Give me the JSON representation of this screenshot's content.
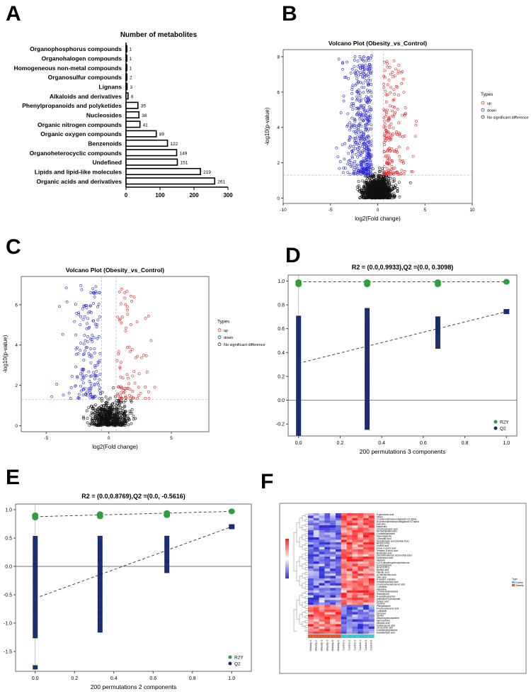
{
  "panels": {
    "A": {
      "letter": "A"
    },
    "B": {
      "letter": "B"
    },
    "C": {
      "letter": "C"
    },
    "D": {
      "letter": "D"
    },
    "E": {
      "letter": "E"
    },
    "F": {
      "letter": "F"
    }
  },
  "chart_data": [
    {
      "id": "A",
      "type": "bar",
      "orientation": "horizontal",
      "title": "Number of  metabolites",
      "categories": [
        "Organophosphorus compounds",
        "Organohalogen compounds",
        "Homogeneous non-metal compounds",
        "Organosulfur compounds",
        "Lignans",
        "Alkaloids and derivatives",
        "Phenylpropanoids and polyketides",
        "Nucleosides",
        "Organic nitrogen compounds",
        "Organic oxygen compounds",
        "Benzenoids",
        "Organoheterocyclic compounds",
        "Undefined",
        "Lipids and lipid-like molecules",
        "Organic acids and derivatives"
      ],
      "values": [
        1,
        1,
        1,
        2,
        3,
        6,
        35,
        38,
        41,
        89,
        122,
        149,
        151,
        219,
        261
      ],
      "xlim": [
        0,
        300
      ],
      "xticks": [
        0,
        100,
        200,
        300
      ]
    },
    {
      "id": "B",
      "type": "scatter",
      "title": "Volcano Plot (Obesity_vs_Control)",
      "xlabel": "log2(Fold change)",
      "ylabel": "-log10(p-value)",
      "xlim": [
        -10,
        10
      ],
      "ylim": [
        -0.3,
        8.4
      ],
      "xticks": [
        -10,
        -5,
        0,
        5,
        10
      ],
      "yticks": [
        0,
        2,
        4,
        6,
        8
      ],
      "thresholds": {
        "x": [
          -0.58,
          0.58
        ],
        "y": 1.3
      },
      "legend": {
        "title": "Types",
        "entries": [
          "up",
          "down",
          "No significant difference"
        ],
        "colors": [
          "#e03030",
          "#3030d0",
          "#222222"
        ]
      }
    },
    {
      "id": "C",
      "type": "scatter",
      "title": "Volcano Plot (Obesity_vs_Control)",
      "xlabel": "log2(Fold change)",
      "ylabel": "-log10(p-value)",
      "xlim": [
        -7,
        8
      ],
      "ylim": [
        -0.3,
        7.4
      ],
      "xticks": [
        -5,
        0,
        5
      ],
      "yticks": [
        0,
        2,
        4,
        6
      ],
      "thresholds": {
        "x": [
          -0.58,
          0.58
        ],
        "y": 1.3
      },
      "legend": {
        "title": "Types",
        "entries": [
          "up",
          "down",
          "No significant difference"
        ],
        "colors": [
          "#e03030",
          "#3030d0",
          "#222222"
        ]
      }
    },
    {
      "id": "D",
      "type": "scatter",
      "title": "R2 = (0.0,0.9933),Q2 =(0.0, 0.3098)",
      "xlabel": "200 permutations 3 components",
      "xlim": [
        -0.05,
        1.05
      ],
      "ylim": [
        -0.3,
        1.05
      ],
      "xticks": [
        0.0,
        0.2,
        0.4,
        0.6,
        0.8,
        1.0
      ],
      "yticks": [
        -0.2,
        0.0,
        0.2,
        0.4,
        0.6,
        0.8,
        1.0
      ],
      "series": [
        {
          "name": "R2Y",
          "color": "#2e9e3e",
          "x": [
            0,
            0.33,
            0.67,
            1.0
          ],
          "y": [
            0.99,
            0.99,
            0.99,
            0.9933
          ]
        },
        {
          "name": "Q2",
          "color": "#1a2e6e",
          "x": [
            0,
            0.33,
            0.67,
            1.0
          ],
          "y": [
            0.31,
            0.45,
            0.6,
            0.7435
          ]
        }
      ],
      "q2_ranges": [
        [
          -0.29,
          0.71
        ],
        [
          -0.24,
          0.77
        ],
        [
          0.44,
          0.71
        ]
      ],
      "regression": {
        "R2Y": [
          0.0,
          0.9933
        ],
        "Q2": [
          0.0,
          0.3098
        ]
      }
    },
    {
      "id": "E",
      "type": "scatter",
      "title": "R2 = (0.0,0.8769),Q2 =(0.0, -0.5616)",
      "xlabel": "200 permutations 2 components",
      "xlim": [
        -0.1,
        1.1
      ],
      "ylim": [
        -1.85,
        1.1
      ],
      "xticks": [
        0.0,
        0.2,
        0.4,
        0.6,
        0.8,
        1.0
      ],
      "yticks": [
        -1.5,
        -1.0,
        -0.5,
        0.0,
        0.5,
        1.0
      ],
      "series": [
        {
          "name": "R2Y",
          "color": "#2e9e3e",
          "x": [
            0,
            0.33,
            0.67,
            1.0
          ],
          "y": [
            0.9,
            0.92,
            0.94,
            0.97
          ]
        },
        {
          "name": "Q2",
          "color": "#1a2e6e",
          "x": [
            0,
            0.33,
            0.67,
            1.0
          ],
          "y": [
            -0.56,
            -0.18,
            0.28,
            0.7
          ]
        }
      ],
      "q2_ranges": [
        [
          -1.25,
          0.55
        ],
        [
          -1.15,
          0.55
        ],
        [
          -0.1,
          0.55
        ]
      ],
      "q2_outlier": -1.78,
      "regression": {
        "R2Y": [
          0.0,
          0.8769
        ],
        "Q2": [
          0.0,
          -0.5616
        ]
      }
    },
    {
      "id": "F",
      "type": "heatmap",
      "rows": 50,
      "columns": [
        "Obesity 1",
        "Obesity 2",
        "Obesity 3",
        "Obesity 4",
        "Obesity 5",
        "Obesity 6",
        "Control 1",
        "Control 2",
        "Control 3",
        "Control 4",
        "Control 5",
        "Control 6"
      ],
      "groups": [
        "Obesity",
        "Control"
      ],
      "group_colors": {
        "Obesity": "#e85a2a",
        "Control": "#3ec8d8"
      },
      "color_scale": {
        "low": "#3030d8",
        "mid": "#ffffff",
        "high": "#e02020"
      },
      "row_labels": [
        "D-glucuronic acid",
        "TMAO",
        "17-phenoxytrinorprostaglandin E2 alpha",
        "16-phenoxytetranorprostaglandin E2 alpha",
        "Arecoline",
        "Butanediol",
        "3-hydroxybutyric acid",
        "N6-methyladenosine",
        "1-octadecanamine",
        "Stearoylglycine",
        "L-threonic acid",
        "Acetaldehyde acid (hydrate free)",
        "MG(18:1/0:0)",
        "Linoleic acid",
        "Indole-3-acetic acid",
        "Tetradec-5-enoic acid",
        "Myristoleic acid",
        "Docosahexaenoic acid methyl ester",
        "Dodecanoic acid",
        "Allantoin",
        "1-(2,5-dihydroxyphenyl)ethanone",
        "N-acetylglycine",
        "MG(0:0/18:1)",
        "Myristic acid",
        "Palmitic acid",
        "10-Nitrolinoleic acid",
        "Oleic acid",
        "N-acetyl-L-histidine",
        "Tetradecanedioic acid",
        "2-hydroxyhexadecanoic acid",
        "L-carnitine",
        "Histamine",
        "17-beta-ethylestradiol",
        "Testosterone",
        "N-acetyltryptophan",
        "Adenosine 5-phosphate",
        "Tartaric acid",
        "Tyrosine",
        "Phenylalanine",
        "4-hydroxybenzoic acid",
        "L-citrulline",
        "Pyridoxal",
        "Taurine",
        "Dihydroxybenzylamine",
        "Hypoxanthine",
        "Nicotinic acid",
        "Octadecanoic acid",
        "Cis-aconitic acid",
        "5-methoxytryptamine",
        "Acetaldehyde acid"
      ],
      "legend_labels": [
        "Type",
        "Control",
        "Obesity"
      ]
    }
  ]
}
